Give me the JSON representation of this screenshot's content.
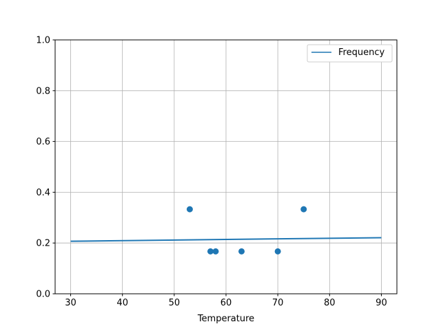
{
  "chart_data": {
    "type": "scatter",
    "title": "",
    "xlabel": "Temperature",
    "ylabel": "",
    "xlim": [
      27,
      93
    ],
    "ylim": [
      0,
      1.0
    ],
    "xticks": [
      30,
      40,
      50,
      60,
      70,
      80,
      90
    ],
    "xtick_labels": [
      "30",
      "40",
      "50",
      "60",
      "70",
      "80",
      "90"
    ],
    "yticks": [
      0,
      0.2,
      0.4,
      0.6,
      0.8,
      1.0
    ],
    "ytick_labels": [
      "0.0",
      "0.2",
      "0.4",
      "0.6",
      "0.8",
      "1.0"
    ],
    "grid": true,
    "legend_placement": "top-right",
    "color": "#1f77b4",
    "points": {
      "x": [
        53,
        57,
        58,
        63,
        70,
        75
      ],
      "y": [
        0.333,
        0.167,
        0.167,
        0.167,
        0.167,
        0.333
      ]
    },
    "line": {
      "name": "Frequency",
      "x": [
        30,
        90
      ],
      "y": [
        0.207,
        0.221
      ]
    }
  }
}
